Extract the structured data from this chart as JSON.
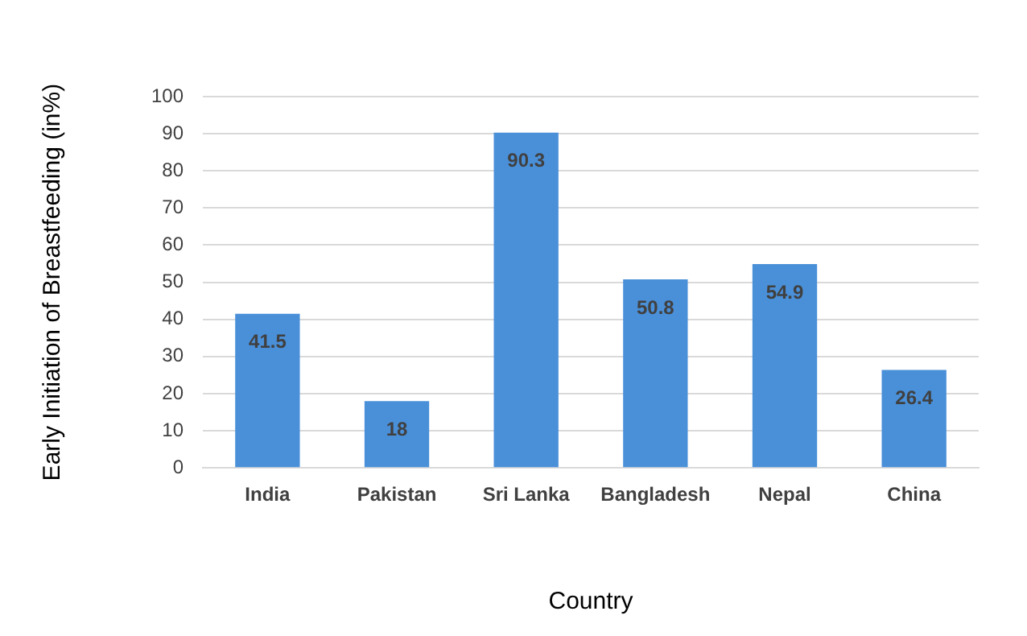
{
  "chart_data": {
    "type": "bar",
    "xlabel": "Country",
    "ylabel": "Early Initiation of Breastfeeding (in%)",
    "categories": [
      "India",
      "Pakistan",
      "Sri Lanka",
      "Bangladesh",
      "Nepal",
      "China"
    ],
    "values": [
      41.5,
      18,
      90.3,
      50.8,
      54.9,
      26.4
    ],
    "color": "#4a90d9",
    "ylim": [
      0,
      100
    ],
    "yticks": [
      0,
      10,
      20,
      30,
      40,
      50,
      60,
      70,
      80,
      90,
      100
    ],
    "grid": "y",
    "data_labels": true
  }
}
